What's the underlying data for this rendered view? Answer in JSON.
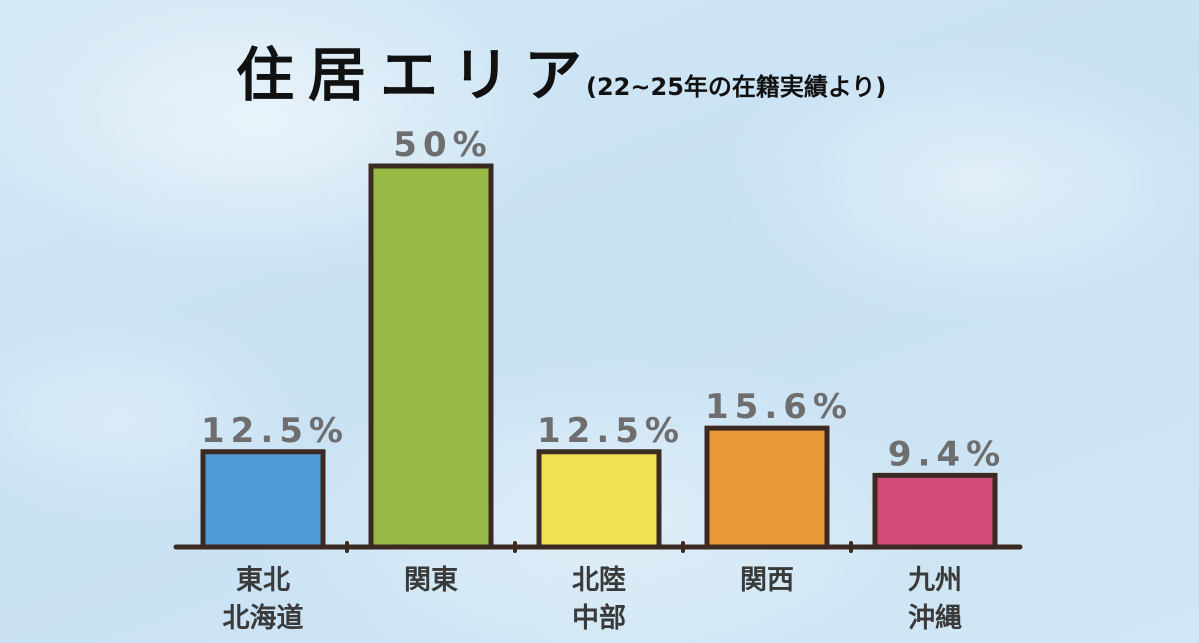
{
  "title": {
    "main": "住居エリア",
    "sub": "(22~25年の在籍実績より)"
  },
  "chart_data": {
    "type": "bar",
    "title": "住居エリア",
    "subtitle": "(22~25年の在籍実績より)",
    "categories": [
      [
        "東北",
        "北海道"
      ],
      [
        "関東"
      ],
      [
        "北陸",
        "中部"
      ],
      [
        "関西"
      ],
      [
        "九州",
        "沖縄"
      ]
    ],
    "values": [
      12.5,
      50,
      12.5,
      15.6,
      9.4
    ],
    "value_labels": [
      "12.5%",
      "50%",
      "12.5%",
      "15.6%",
      "9.4%"
    ],
    "colors": [
      "#4f9bd6",
      "#95b944",
      "#f1df54",
      "#e9983a",
      "#d24c78"
    ],
    "ylim": [
      0,
      50
    ],
    "grid": false,
    "legend": "none"
  }
}
